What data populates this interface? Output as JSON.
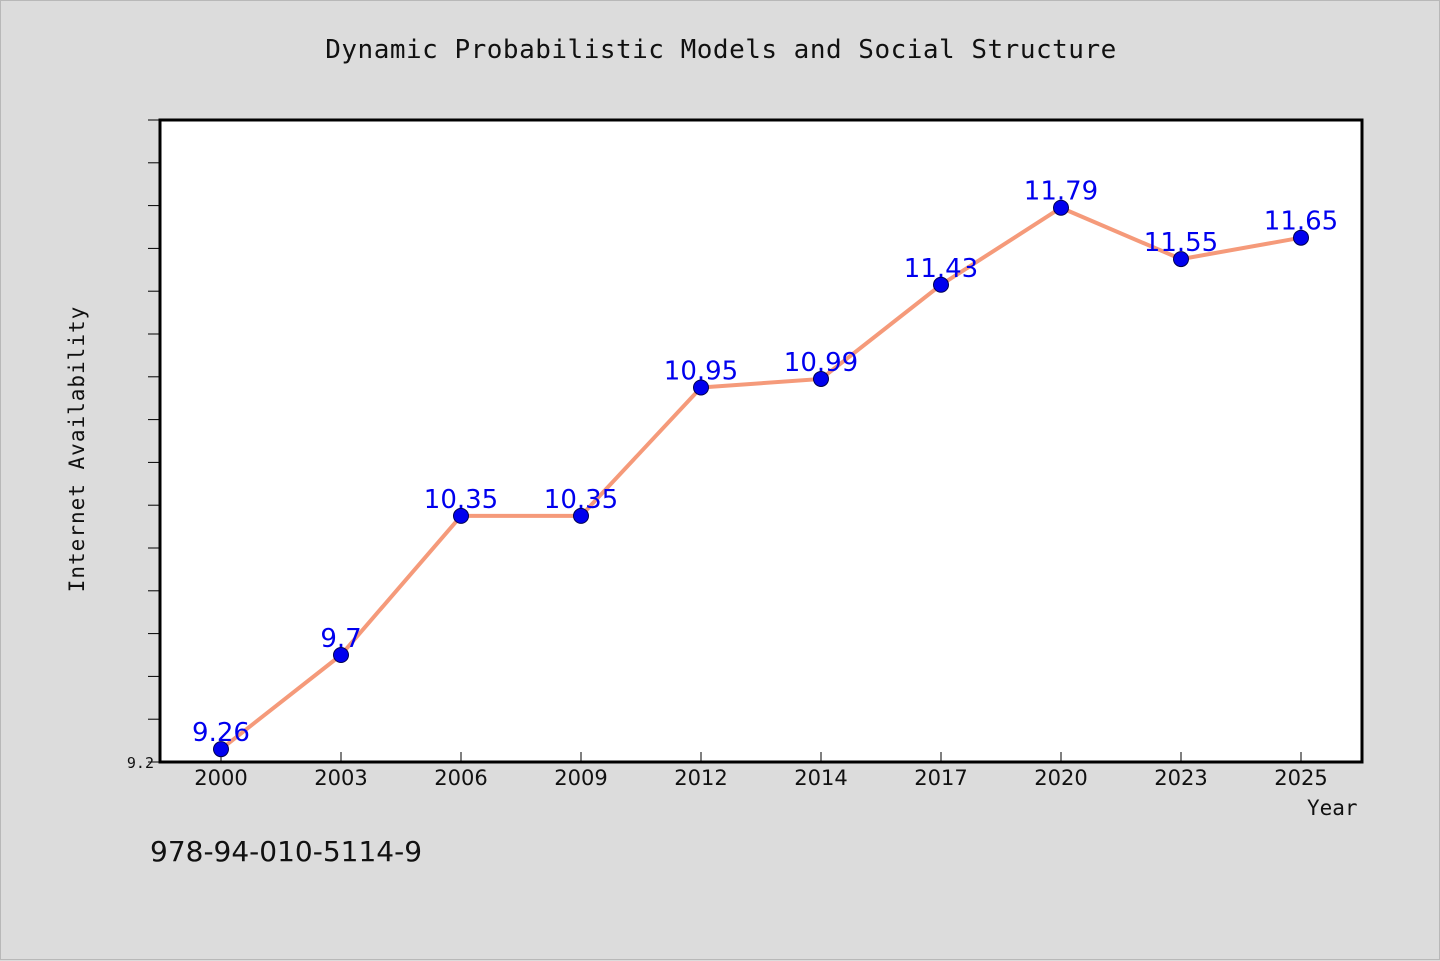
{
  "colors": {
    "background": "#dcdcdc",
    "plot_background": "#ffffff",
    "line": "#f59a7a",
    "marker": "#0000ee",
    "data_label": "#0000ee",
    "axis": "#000000"
  },
  "footer_text": "978-94-010-5114-9",
  "chart_data": {
    "type": "line",
    "title": "Dynamic Probabilistic Models and Social Structure",
    "xlabel": "Year",
    "ylabel": "Internet Availability",
    "categories": [
      "2000",
      "2003",
      "2006",
      "2009",
      "2012",
      "2014",
      "2017",
      "2020",
      "2023",
      "2025"
    ],
    "series": [
      {
        "values": [
          9.26,
          9.7,
          10.35,
          10.35,
          10.95,
          10.99,
          11.43,
          11.79,
          11.55,
          11.65
        ],
        "value_labels": [
          "9.26",
          "9.7",
          "10.35",
          "10.35",
          "10.95",
          "10.99",
          "11.43",
          "11.79",
          "11.55",
          "11.65"
        ]
      }
    ],
    "ylim": [
      9.2,
      12.2
    ],
    "y_tick_labels": [
      "9.2"
    ],
    "y_minor_tick_step": 0.2,
    "grid": false,
    "legend": "none",
    "marker": "circle"
  }
}
